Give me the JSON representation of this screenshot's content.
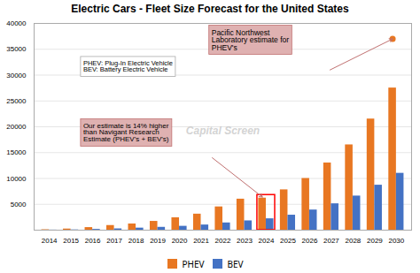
{
  "chart_data": {
    "type": "bar",
    "title": "Electric Cars - Fleet Size Forecast for the United States",
    "categories": [
      2014,
      2015,
      2016,
      2017,
      2018,
      2019,
      2020,
      2021,
      2022,
      2023,
      2024,
      2025,
      2026,
      2027,
      2028,
      2029,
      2030
    ],
    "series": [
      {
        "name": "PHEV",
        "color": "#E87722",
        "values": [
          80,
          220,
          500,
          900,
          1200,
          1700,
          2400,
          3100,
          4500,
          6000,
          6200,
          7800,
          10000,
          13000,
          16500,
          21500,
          27500
        ]
      },
      {
        "name": "BEV",
        "color": "#4472C4",
        "values": [
          20,
          50,
          150,
          250,
          400,
          550,
          750,
          1000,
          1400,
          1800,
          2200,
          2900,
          3900,
          5100,
          6600,
          8700,
          11000
        ]
      }
    ],
    "ylim": [
      0,
      40000
    ],
    "yticks": [
      5000,
      10000,
      15000,
      20000,
      25000,
      30000,
      35000,
      40000
    ],
    "grid": true,
    "legend": "bottom",
    "watermark": "Capital Screen",
    "highlight": 2024,
    "points": [
      {
        "category": 2030,
        "series": "PHEV",
        "value": 37000
      }
    ],
    "annotations": [
      {
        "text": "PHEV: Plug-In Electric Vehicle\nBEV: Battery Electric Vehicle"
      },
      {
        "text": "Our estimate is 14% higher\nthan Navigant Research\nEstimate (PHEV's + BEV's)",
        "arrow_to": 2024
      },
      {
        "text": "Pacific Northwest\nLaboratory estimate for\nPHEV's",
        "arrow_to": 2030
      }
    ]
  }
}
